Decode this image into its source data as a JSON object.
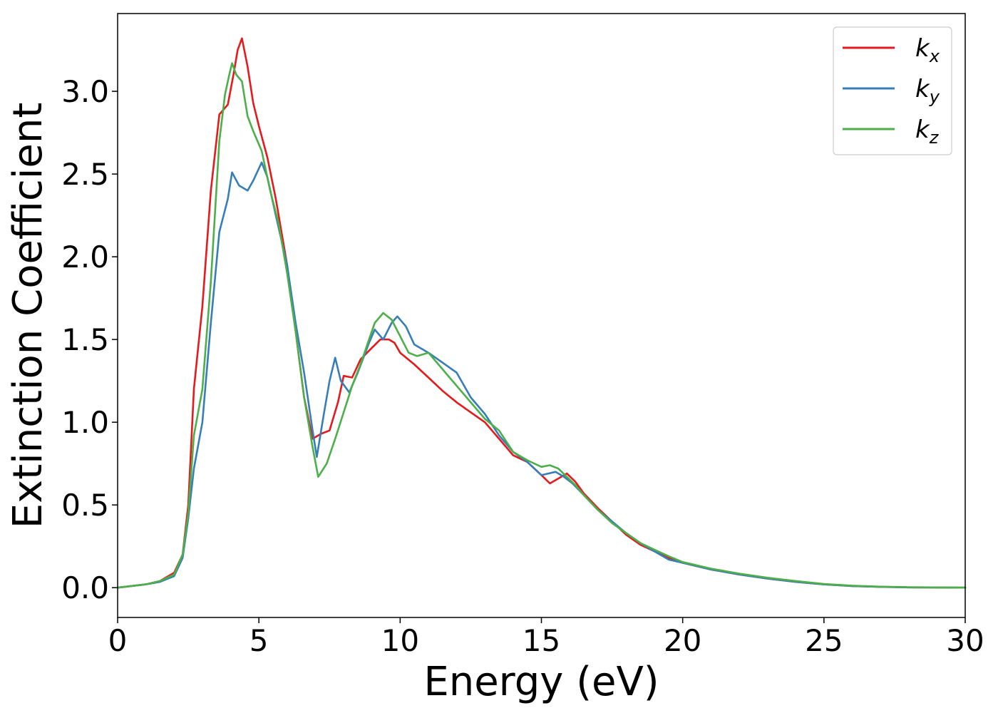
{
  "chart_data": {
    "type": "line",
    "title": "",
    "xlabel": "Energy (eV)",
    "ylabel": "Extinction Coefficient",
    "xlim": [
      0,
      30
    ],
    "ylim": [
      -0.18,
      3.47
    ],
    "xticks": [
      0,
      5,
      10,
      15,
      20,
      25,
      30
    ],
    "xtick_labels": [
      "0",
      "5",
      "10",
      "15",
      "20",
      "25",
      "30"
    ],
    "yticks": [
      0.0,
      0.5,
      1.0,
      1.5,
      2.0,
      2.5,
      3.0
    ],
    "ytick_labels": [
      "0.0",
      "0.5",
      "1.0",
      "1.5",
      "2.0",
      "2.5",
      "3.0"
    ],
    "grid": false,
    "legend_position": "top-right",
    "series": [
      {
        "name": "k",
        "subscript": "x",
        "color": "#e41a1c",
        "points": [
          [
            0,
            0
          ],
          [
            1,
            0.02
          ],
          [
            1.5,
            0.04
          ],
          [
            2,
            0.09
          ],
          [
            2.3,
            0.2
          ],
          [
            2.5,
            0.5
          ],
          [
            2.7,
            1.2
          ],
          [
            3,
            1.7
          ],
          [
            3.3,
            2.4
          ],
          [
            3.6,
            2.86
          ],
          [
            3.9,
            2.92
          ],
          [
            4.1,
            3.1
          ],
          [
            4.25,
            3.25
          ],
          [
            4.4,
            3.32
          ],
          [
            4.6,
            3.15
          ],
          [
            4.8,
            2.93
          ],
          [
            5,
            2.79
          ],
          [
            5.3,
            2.6
          ],
          [
            5.6,
            2.35
          ],
          [
            6,
            1.95
          ],
          [
            6.3,
            1.55
          ],
          [
            6.6,
            1.15
          ],
          [
            6.9,
            0.9
          ],
          [
            7.2,
            0.93
          ],
          [
            7.5,
            0.95
          ],
          [
            7.8,
            1.12
          ],
          [
            8,
            1.28
          ],
          [
            8.3,
            1.27
          ],
          [
            8.6,
            1.38
          ],
          [
            9,
            1.45
          ],
          [
            9.3,
            1.5
          ],
          [
            9.6,
            1.5
          ],
          [
            9.8,
            1.48
          ],
          [
            10,
            1.42
          ],
          [
            10.5,
            1.35
          ],
          [
            11,
            1.27
          ],
          [
            11.5,
            1.19
          ],
          [
            12,
            1.12
          ],
          [
            12.5,
            1.06
          ],
          [
            13,
            1.0
          ],
          [
            13.5,
            0.9
          ],
          [
            14,
            0.8
          ],
          [
            14.5,
            0.76
          ],
          [
            15,
            0.68
          ],
          [
            15.3,
            0.63
          ],
          [
            15.6,
            0.66
          ],
          [
            15.9,
            0.69
          ],
          [
            16.2,
            0.64
          ],
          [
            16.5,
            0.57
          ],
          [
            17,
            0.48
          ],
          [
            17.5,
            0.4
          ],
          [
            18,
            0.32
          ],
          [
            18.5,
            0.26
          ],
          [
            19,
            0.22
          ],
          [
            19.5,
            0.18
          ],
          [
            20,
            0.15
          ],
          [
            21,
            0.11
          ],
          [
            22,
            0.08
          ],
          [
            23,
            0.055
          ],
          [
            24,
            0.035
          ],
          [
            25,
            0.02
          ],
          [
            26,
            0.01
          ],
          [
            27,
            0.005
          ],
          [
            28,
            0.002
          ],
          [
            30,
            0
          ]
        ]
      },
      {
        "name": "k",
        "subscript": "y",
        "color": "#377eb8",
        "points": [
          [
            0,
            0
          ],
          [
            1,
            0.02
          ],
          [
            1.5,
            0.035
          ],
          [
            2,
            0.07
          ],
          [
            2.3,
            0.18
          ],
          [
            2.5,
            0.42
          ],
          [
            2.7,
            0.72
          ],
          [
            3,
            1.0
          ],
          [
            3.3,
            1.6
          ],
          [
            3.6,
            2.15
          ],
          [
            3.9,
            2.35
          ],
          [
            4.05,
            2.51
          ],
          [
            4.3,
            2.43
          ],
          [
            4.6,
            2.4
          ],
          [
            4.8,
            2.46
          ],
          [
            5.1,
            2.57
          ],
          [
            5.3,
            2.48
          ],
          [
            5.6,
            2.25
          ],
          [
            6,
            1.95
          ],
          [
            6.3,
            1.6
          ],
          [
            6.6,
            1.3
          ],
          [
            6.9,
            0.95
          ],
          [
            7.05,
            0.79
          ],
          [
            7.3,
            1.05
          ],
          [
            7.5,
            1.25
          ],
          [
            7.7,
            1.39
          ],
          [
            7.9,
            1.25
          ],
          [
            8.2,
            1.18
          ],
          [
            8.5,
            1.3
          ],
          [
            8.9,
            1.48
          ],
          [
            9.1,
            1.56
          ],
          [
            9.4,
            1.5
          ],
          [
            9.7,
            1.6
          ],
          [
            9.9,
            1.64
          ],
          [
            10.2,
            1.58
          ],
          [
            10.5,
            1.47
          ],
          [
            11,
            1.42
          ],
          [
            11.5,
            1.36
          ],
          [
            12,
            1.3
          ],
          [
            12.5,
            1.15
          ],
          [
            13,
            1.05
          ],
          [
            13.5,
            0.92
          ],
          [
            14,
            0.82
          ],
          [
            14.5,
            0.76
          ],
          [
            15,
            0.68
          ],
          [
            15.5,
            0.7
          ],
          [
            15.8,
            0.67
          ],
          [
            16.1,
            0.63
          ],
          [
            16.5,
            0.56
          ],
          [
            17,
            0.47
          ],
          [
            17.5,
            0.4
          ],
          [
            18,
            0.33
          ],
          [
            18.5,
            0.27
          ],
          [
            19,
            0.22
          ],
          [
            19.5,
            0.17
          ],
          [
            20,
            0.15
          ],
          [
            21,
            0.11
          ],
          [
            22,
            0.08
          ],
          [
            23,
            0.055
          ],
          [
            24,
            0.035
          ],
          [
            25,
            0.02
          ],
          [
            26,
            0.01
          ],
          [
            27,
            0.005
          ],
          [
            28,
            0.002
          ],
          [
            30,
            0
          ]
        ]
      },
      {
        "name": "k",
        "subscript": "z",
        "color": "#4daf4a",
        "points": [
          [
            0,
            0
          ],
          [
            1,
            0.02
          ],
          [
            1.5,
            0.04
          ],
          [
            2,
            0.08
          ],
          [
            2.3,
            0.2
          ],
          [
            2.5,
            0.45
          ],
          [
            2.7,
            0.92
          ],
          [
            3,
            1.2
          ],
          [
            3.3,
            1.85
          ],
          [
            3.6,
            2.7
          ],
          [
            3.8,
            2.98
          ],
          [
            3.95,
            3.1
          ],
          [
            4.05,
            3.17
          ],
          [
            4.2,
            3.1
          ],
          [
            4.4,
            3.06
          ],
          [
            4.6,
            2.85
          ],
          [
            4.8,
            2.76
          ],
          [
            5.1,
            2.64
          ],
          [
            5.4,
            2.4
          ],
          [
            5.7,
            2.2
          ],
          [
            6,
            1.9
          ],
          [
            6.3,
            1.55
          ],
          [
            6.6,
            1.15
          ],
          [
            6.9,
            0.85
          ],
          [
            7.1,
            0.67
          ],
          [
            7.4,
            0.75
          ],
          [
            7.7,
            0.9
          ],
          [
            8,
            1.06
          ],
          [
            8.3,
            1.22
          ],
          [
            8.6,
            1.35
          ],
          [
            8.9,
            1.5
          ],
          [
            9.1,
            1.6
          ],
          [
            9.4,
            1.66
          ],
          [
            9.7,
            1.62
          ],
          [
            10,
            1.52
          ],
          [
            10.3,
            1.42
          ],
          [
            10.6,
            1.4
          ],
          [
            11,
            1.42
          ],
          [
            11.5,
            1.32
          ],
          [
            12,
            1.22
          ],
          [
            12.5,
            1.12
          ],
          [
            13,
            1.02
          ],
          [
            13.5,
            0.95
          ],
          [
            14,
            0.82
          ],
          [
            14.5,
            0.77
          ],
          [
            15,
            0.73
          ],
          [
            15.3,
            0.74
          ],
          [
            15.6,
            0.72
          ],
          [
            15.9,
            0.67
          ],
          [
            16.2,
            0.62
          ],
          [
            16.5,
            0.56
          ],
          [
            17,
            0.47
          ],
          [
            17.5,
            0.39
          ],
          [
            18,
            0.33
          ],
          [
            18.5,
            0.27
          ],
          [
            19,
            0.23
          ],
          [
            19.5,
            0.19
          ],
          [
            20,
            0.155
          ],
          [
            21,
            0.115
          ],
          [
            22,
            0.085
          ],
          [
            23,
            0.06
          ],
          [
            24,
            0.04
          ],
          [
            25,
            0.022
          ],
          [
            26,
            0.012
          ],
          [
            27,
            0.006
          ],
          [
            28,
            0.003
          ],
          [
            30,
            0
          ]
        ]
      }
    ]
  }
}
